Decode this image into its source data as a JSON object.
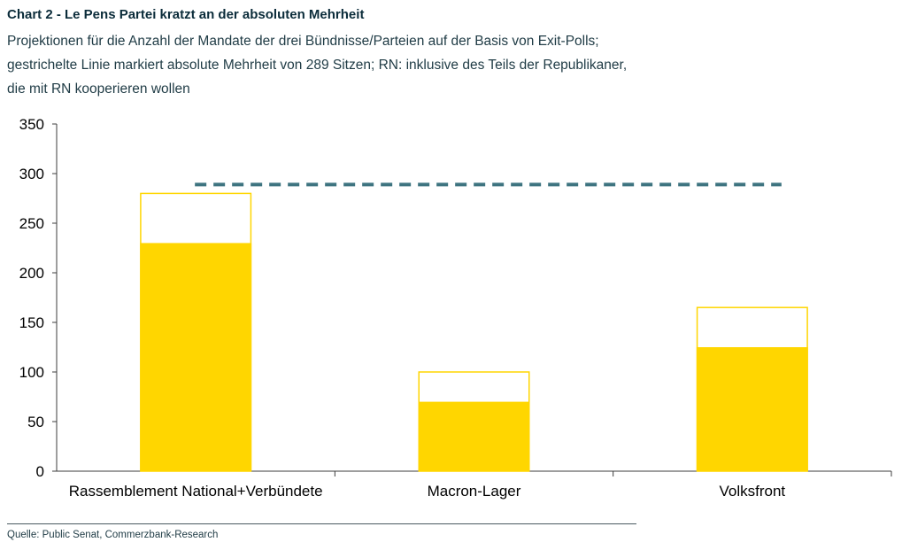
{
  "header": {
    "title": "Chart 2 - Le Pens Partei kratzt an der absoluten Mehrheit",
    "subtitle": "Projektionen für die Anzahl der Mandate der drei Bündnisse/Parteien auf der Basis von Exit-Polls; gestrichelte Linie markiert absolute Mehrheit von 289 Sitzen; RN: inklusive des Teils der Republikaner, die mit RN kooperieren wollen"
  },
  "footer": {
    "source": "Quelle: Public Senat, Commerzbank-Research"
  },
  "colors": {
    "bar_fill": "#FFD600",
    "bar_outline": "#FFD600",
    "majority_line": "#3E7480",
    "axis": "#3c3c3c"
  },
  "chart_data": {
    "type": "bar",
    "categories": [
      "Rassemblement National+Verbündete",
      "Macron-Lager",
      "Volksfront"
    ],
    "series": [
      {
        "values": [
          230,
          70,
          125
        ],
        "style": "solid"
      },
      {
        "values": [
          280,
          100,
          165
        ],
        "style": "outline"
      }
    ],
    "reference_line": {
      "value": 289,
      "style": "dashed"
    },
    "ylim": [
      0,
      350
    ],
    "yticks": [
      0,
      50,
      100,
      150,
      200,
      250,
      300,
      350
    ],
    "grid": false,
    "legend": "none"
  }
}
